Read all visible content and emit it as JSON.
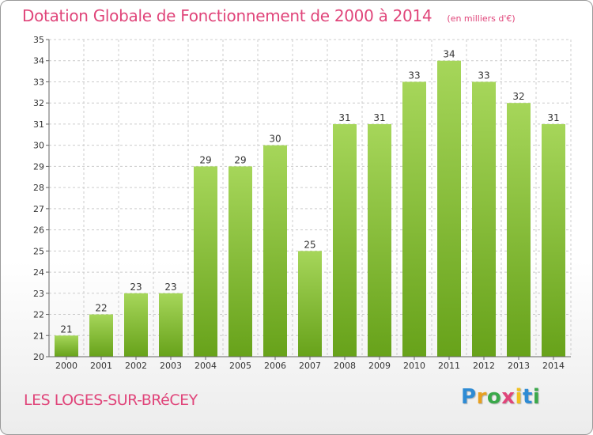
{
  "header": {
    "title": "Dotation Globale de Fonctionnement de 2000 à 2014",
    "unit": "(en milliers d'€)"
  },
  "footer": {
    "commune": "LES LOGES-SUR-BRéCEY",
    "logo": [
      "P",
      "r",
      "o",
      "x",
      "i",
      "t",
      "i"
    ],
    "logo_colors": [
      "#2e8bd4",
      "#e8a020",
      "#3aa84a",
      "#e0457a",
      "#f0c020",
      "#2e8bd4",
      "#3aa84a"
    ]
  },
  "chart_data": {
    "type": "bar",
    "title": "Dotation Globale de Fonctionnement de 2000 à 2014",
    "subtitle": "(en milliers d'€)",
    "categories": [
      "2000",
      "2001",
      "2002",
      "2003",
      "2004",
      "2005",
      "2006",
      "2007",
      "2008",
      "2009",
      "2010",
      "2011",
      "2012",
      "2013",
      "2014"
    ],
    "values": [
      21,
      22,
      23,
      23,
      29,
      29,
      30,
      25,
      31,
      31,
      33,
      34,
      33,
      32,
      31
    ],
    "ylim": [
      20,
      35
    ],
    "yticks": [
      20,
      21,
      22,
      23,
      24,
      25,
      26,
      27,
      28,
      29,
      30,
      31,
      32,
      33,
      34,
      35
    ],
    "grid": true,
    "legend": "none",
    "colors": {
      "bar_light": "#9fd24f",
      "bar_dark": "#6aa51e",
      "grid": "#cccccc",
      "axis": "#666666"
    }
  }
}
